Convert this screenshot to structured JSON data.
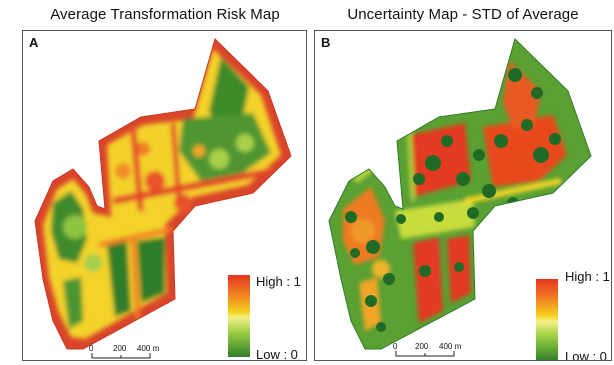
{
  "panel_a": {
    "title": "Average Transformation Risk Map",
    "letter": "A",
    "legend_high": "High : 1",
    "legend_low": "Low : 0",
    "scale": {
      "zero": "0",
      "mid": "200",
      "end": "400 m"
    }
  },
  "panel_b": {
    "title": "Uncertainty Map - STD of Average",
    "letter": "B",
    "legend_high": "High : 1",
    "legend_low": "Low : 0",
    "scale": {
      "zero": "0",
      "mid": "200",
      "end": "400 m"
    }
  },
  "colors": {
    "high": "#e8351c",
    "mid": "#f6d221",
    "low": "#2e7d2a",
    "outline": "#d9442a"
  }
}
